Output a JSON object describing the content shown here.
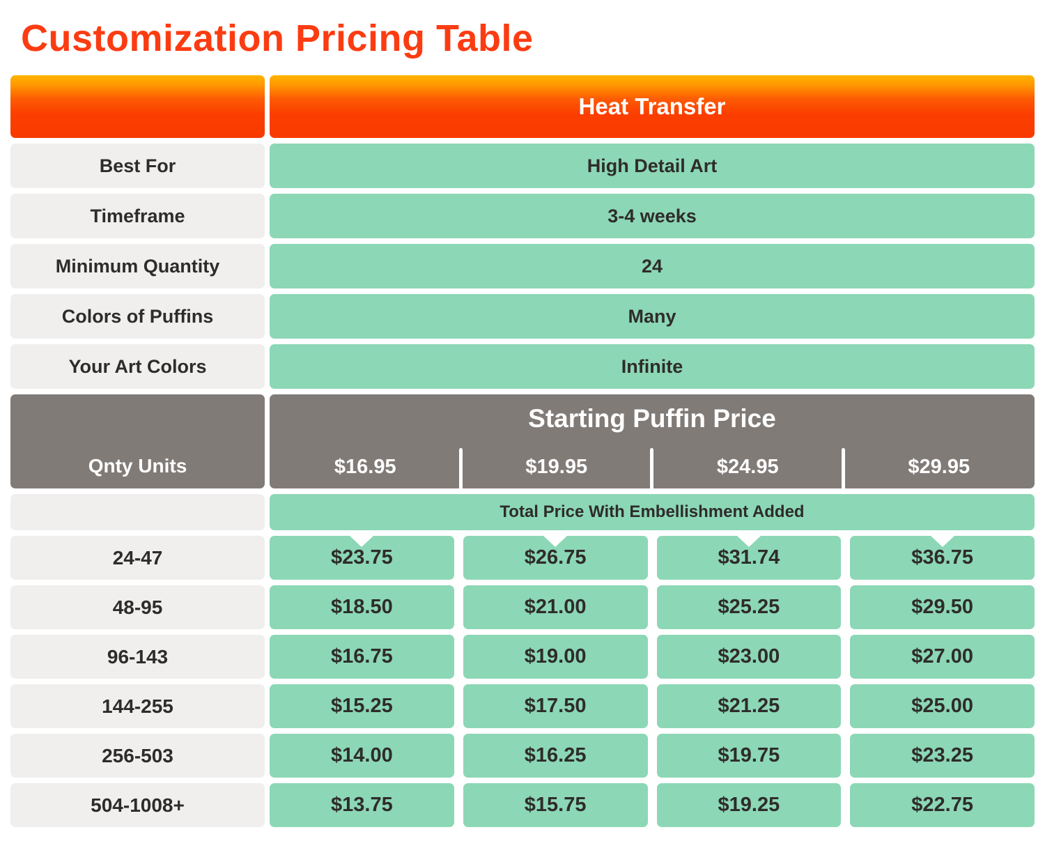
{
  "title": "Customization Pricing Table",
  "colors": {
    "title_red": "#fb3c12",
    "header_gradient_top": "#ffb400",
    "header_gradient_bottom": "#fb3e00",
    "mint_green": "#8cd7b6",
    "dark_gray": "#817b78",
    "light_gray": "#f0efed",
    "text_dark": "#2e2c2a"
  },
  "chart_data": {
    "type": "table",
    "title": "Customization Pricing Table",
    "column_header": "Heat Transfer",
    "spec_rows": [
      {
        "label": "Best For",
        "value": "High Detail Art"
      },
      {
        "label": "Timeframe",
        "value": "3-4 weeks"
      },
      {
        "label": "Minimum Quantity",
        "value": "24"
      },
      {
        "label": "Colors of Puffins",
        "value": "Many"
      },
      {
        "label": "Your Art Colors",
        "value": "Infinite"
      }
    ],
    "price_header": {
      "row_label": "Qnty Units",
      "title": "Starting Puffin Price",
      "starting_prices": [
        "$16.95",
        "$19.95",
        "$24.95",
        "$29.95"
      ]
    },
    "subheader": "Total Price With Embellishment Added",
    "quantity_rows": [
      {
        "range": "24-47",
        "prices": [
          "$23.75",
          "$26.75",
          "$31.74",
          "$36.75"
        ]
      },
      {
        "range": "48-95",
        "prices": [
          "$18.50",
          "$21.00",
          "$25.25",
          "$29.50"
        ]
      },
      {
        "range": "96-143",
        "prices": [
          "$16.75",
          "$19.00",
          "$23.00",
          "$27.00"
        ]
      },
      {
        "range": "144-255",
        "prices": [
          "$15.25",
          "$17.50",
          "$21.25",
          "$25.00"
        ]
      },
      {
        "range": "256-503",
        "prices": [
          "$14.00",
          "$16.25",
          "$19.75",
          "$23.25"
        ]
      },
      {
        "range": "504-1008+",
        "prices": [
          "$13.75",
          "$15.75",
          "$19.25",
          "$22.75"
        ]
      }
    ]
  }
}
